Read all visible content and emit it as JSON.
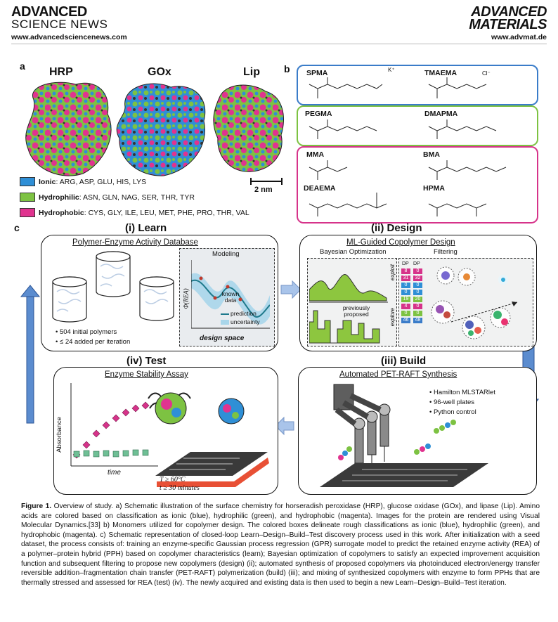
{
  "header": {
    "left_brand_line1": "ADVANCED",
    "left_brand_line2": "SCIENCE NEWS",
    "left_url": "www.advancedsciencenews.com",
    "right_brand_line1": "ADVANCED",
    "right_brand_line2": "MATERIALS",
    "right_url": "www.advmat.de"
  },
  "panel_a": {
    "label": "a",
    "enzymes": [
      "HRP",
      "GOx",
      "Lip"
    ],
    "scale_bar": "2 nm",
    "legend": [
      {
        "cls": "Ionic",
        "residues": ": ARG, ASP, GLU, HIS, LYS",
        "color": "#2f8fd6"
      },
      {
        "cls": "Hydrophilic",
        "residues": ": ASN, GLN, NAG, SER, THR, TYR",
        "color": "#7dc242"
      },
      {
        "cls": "Hydrophobic",
        "residues": ": CYS, GLY, ILE, LEU, MET, PHE, PRO, THR, VAL",
        "color": "#e0338f"
      }
    ]
  },
  "panel_b": {
    "label": "b",
    "ionic": {
      "color": "#3a7cc9",
      "m1": "SPMA",
      "m2": "TMAEMA",
      "k": "K⁺",
      "cl": "Cl⁻"
    },
    "hydrophilic": {
      "color": "#7dc242",
      "m1": "PEGMA",
      "m2": "DMAPMA"
    },
    "hydrophobic": {
      "color": "#d6338a",
      "m1": "MMA",
      "m2": "BMA",
      "m3": "DEAEMA",
      "m4": "HPMA"
    }
  },
  "panel_c": {
    "label": "c",
    "learn": {
      "title": "(i) Learn",
      "subtitle": "Polymer-Enzyme Activity Database",
      "modeling": "Modeling",
      "known_data": "known data",
      "prediction": "prediction",
      "uncertainty": "uncertainty",
      "design_space": "design space",
      "yaxis": "Φ(REA)",
      "bullet1": "• 504 initial polymers",
      "bullet2": "• ≤ 24 added per iteration"
    },
    "design": {
      "title": "(ii) Design",
      "subtitle": "ML-Guided Copolymer Design",
      "bo": "Bayesian Optimization",
      "filtering": "Filtering",
      "exploit": "exploit",
      "explore": "explore",
      "previously_proposed": "previously proposed",
      "dp": "DP",
      "dp_left": [
        "8",
        "31",
        "0",
        "0",
        "19",
        "4",
        "0",
        "46"
      ],
      "dp_right": [
        "0",
        "32",
        "0",
        "0",
        "20",
        "0",
        "0",
        "48"
      ]
    },
    "build": {
      "title": "(iii) Build",
      "subtitle": "Automated PET-RAFT Synthesis",
      "bullets": [
        "• Hamilton MLSTARlet",
        "• 96-well plates",
        "• Python control"
      ]
    },
    "test": {
      "title": "(iv) Test",
      "subtitle": "Enzyme Stability Assay",
      "ylabel": "Absorbance",
      "xlabel": "time",
      "cond1": "T ≥ 60°C",
      "cond2": "t ≥ 30 minutes"
    }
  },
  "caption": {
    "lead": "Figure 1.",
    "text": "  Overview of study. a) Schematic illustration of the surface chemistry for horseradish peroxidase (HRP), glucose oxidase (GOx), and lipase (Lip). Amino acids are colored based on classification as ionic (blue), hydrophilic (green), and hydrophobic (magenta). Images for the protein are rendered using Visual Molecular Dynamics.[33] b) Monomers utilized for copolymer design. The colored boxes delineate rough classifications as ionic (blue), hydrophilic (green), and hydrophobic (magenta). c) Schematic representation of closed-loop Learn–Design–Build–Test discovery process used in this work. After initialization with a seed dataset, the process consists of: training an enzyme-specific Gaussian process regression (GPR) surrogate model to predict the retained enzyme activity (REA) of a polymer–protein hybrid (PPH) based on copolymer characteristics (learn); Bayesian optimization of copolymers to satisfy an expected improvement acquisition function and subsequent filtering to propose new copolymers (design) (ii); automated synthesis of proposed copolymers via photoinduced electron/energy transfer reversible addition–fragmentation chain transfer (PET-RAFT) polymerization (build) (iii); and mixing of synthesized copolymers with enzyme to form PPHs that are thermally stressed and assessed for REA (test) (iv). The newly acquired and existing data is then used to begin a new Learn–Design–Build–Test iteration."
  }
}
